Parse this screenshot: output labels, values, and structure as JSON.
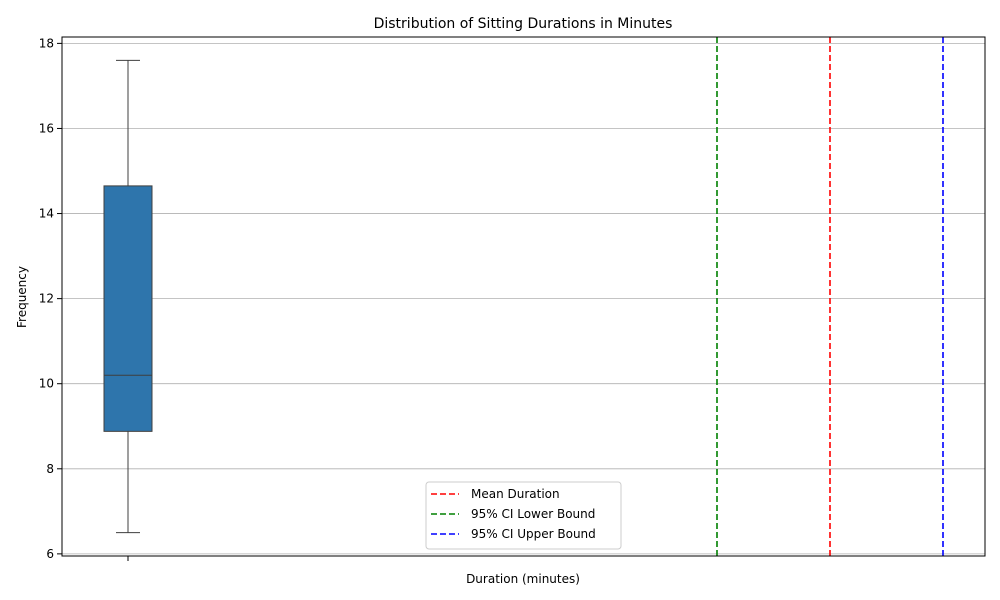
{
  "chart_data": {
    "type": "box",
    "title": "Distribution of Sitting Durations in Minutes",
    "xlabel": "Duration (minutes)",
    "ylabel": "Frequency",
    "ylim": [
      5.95,
      18.15
    ],
    "yticks": [
      6,
      8,
      10,
      12,
      14,
      16,
      18
    ],
    "grid": "horizontal",
    "box": {
      "whisker_low": 6.5,
      "q1": 8.88,
      "median": 10.2,
      "q3": 14.65,
      "whisker_high": 17.6,
      "color": "#2e75ac"
    },
    "vlines": [
      {
        "name": "Mean Duration",
        "color": "#ff0000"
      },
      {
        "name": "95% CI Lower Bound",
        "color": "#008000"
      },
      {
        "name": "95% CI Upper Bound",
        "color": "#0000ff"
      }
    ],
    "legend_position": "lower-center"
  }
}
